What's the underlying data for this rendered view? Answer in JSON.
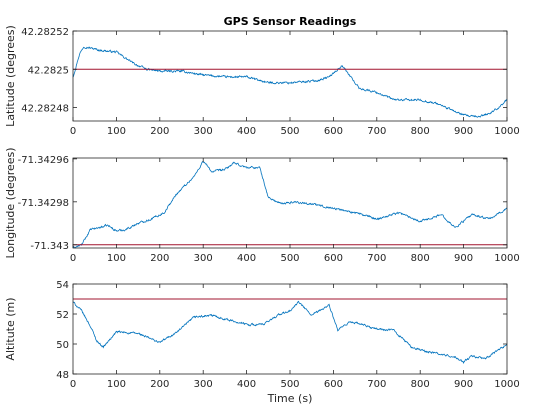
{
  "figure": {
    "title": "GPS Sensor Readings",
    "colors": {
      "trace": "#0072BD",
      "reference": "#A2142F",
      "axis": "#262626",
      "background": "#ffffff"
    }
  },
  "chart_data": [
    {
      "type": "line",
      "title": "GPS Sensor Readings",
      "xlabel": "",
      "ylabel": "Latitude (degrees)",
      "xlim": [
        0,
        1000
      ],
      "ylim": [
        42.282473,
        42.28252
      ],
      "x_ticks": [
        "0",
        "100",
        "200",
        "300",
        "400",
        "500",
        "600",
        "700",
        "800",
        "900",
        "1000"
      ],
      "y_ticks": [
        {
          "value": 42.28248,
          "label": "42.28248"
        },
        {
          "value": 42.2825,
          "label": "42.2825"
        },
        {
          "value": 42.28252,
          "label": "42.28252"
        }
      ],
      "reference_line": 42.2825,
      "trace_keypoints": {
        "x": [
          0,
          15,
          25,
          60,
          100,
          140,
          170,
          200,
          250,
          300,
          350,
          400,
          450,
          500,
          560,
          590,
          620,
          640,
          660,
          700,
          740,
          780,
          800,
          840,
          870,
          900,
          930,
          960,
          980,
          1000
        ],
        "y": [
          42.282496,
          42.282508,
          42.282512,
          42.28251,
          42.282509,
          42.282503,
          42.2825,
          42.282499,
          42.282499,
          42.282497,
          42.282496,
          42.282496,
          42.282493,
          42.282493,
          42.282494,
          42.282496,
          42.282502,
          42.282496,
          42.28249,
          42.282488,
          42.282484,
          42.282484,
          42.282484,
          42.282482,
          42.282479,
          42.282476,
          42.282475,
          42.282477,
          42.28248,
          42.282484
        ]
      }
    },
    {
      "type": "line",
      "title": "",
      "xlabel": "",
      "ylabel": "Longitude (degrees)",
      "xlim": [
        0,
        1000
      ],
      "ylim": [
        -71.3430015,
        -71.3429596
      ],
      "x_ticks": [
        "0",
        "100",
        "200",
        "300",
        "400",
        "500",
        "600",
        "700",
        "800",
        "900",
        "1000"
      ],
      "y_ticks": [
        {
          "value": -71.343,
          "label": "-71.343"
        },
        {
          "value": -71.34298,
          "label": "-71.34298"
        },
        {
          "value": -71.34296,
          "label": "-71.34296"
        }
      ],
      "reference_line": -71.343,
      "trace_keypoints": {
        "x": [
          0,
          20,
          40,
          60,
          80,
          100,
          120,
          150,
          180,
          210,
          240,
          260,
          280,
          300,
          320,
          350,
          370,
          400,
          430,
          450,
          480,
          510,
          550,
          600,
          650,
          700,
          750,
          800,
          850,
          880,
          920,
          960,
          1000
        ],
        "y": [
          -71.3430015,
          -71.343,
          -71.342993,
          -71.342992,
          -71.342991,
          -71.3429935,
          -71.342993,
          -71.34299,
          -71.342988,
          -71.342985,
          -71.342976,
          -71.342972,
          -71.342968,
          -71.342961,
          -71.342966,
          -71.342965,
          -71.342962,
          -71.342964,
          -71.342964,
          -71.342978,
          -71.342981,
          -71.34298,
          -71.342981,
          -71.342983,
          -71.342985,
          -71.342988,
          -71.342985,
          -71.342989,
          -71.342986,
          -71.342992,
          -71.342986,
          -71.342988,
          -71.342983
        ]
      }
    },
    {
      "type": "line",
      "title": "",
      "xlabel": "Time (s)",
      "ylabel": "Altitute (m)",
      "xlim": [
        0,
        1000
      ],
      "ylim": [
        48,
        54
      ],
      "x_ticks": [
        "0",
        "100",
        "200",
        "300",
        "400",
        "500",
        "600",
        "700",
        "800",
        "900",
        "1000"
      ],
      "y_ticks": [
        {
          "value": 48,
          "label": "48"
        },
        {
          "value": 50,
          "label": "50"
        },
        {
          "value": 52,
          "label": "52"
        },
        {
          "value": 54,
          "label": "54"
        }
      ],
      "reference_line": 53,
      "trace_keypoints": {
        "x": [
          0,
          20,
          40,
          55,
          70,
          100,
          150,
          200,
          240,
          280,
          320,
          360,
          400,
          440,
          470,
          500,
          520,
          550,
          590,
          610,
          640,
          700,
          740,
          780,
          800,
          850,
          880,
          900,
          920,
          950,
          1000
        ],
        "y": [
          52.8,
          52.2,
          51.2,
          50.2,
          49.8,
          50.8,
          50.7,
          50.1,
          50.8,
          51.8,
          51.9,
          51.6,
          51.3,
          51.3,
          51.9,
          52.2,
          52.8,
          51.9,
          52.6,
          50.9,
          51.5,
          51.0,
          50.9,
          49.8,
          49.6,
          49.3,
          49.1,
          48.8,
          49.2,
          49.0,
          50.0
        ]
      }
    }
  ]
}
